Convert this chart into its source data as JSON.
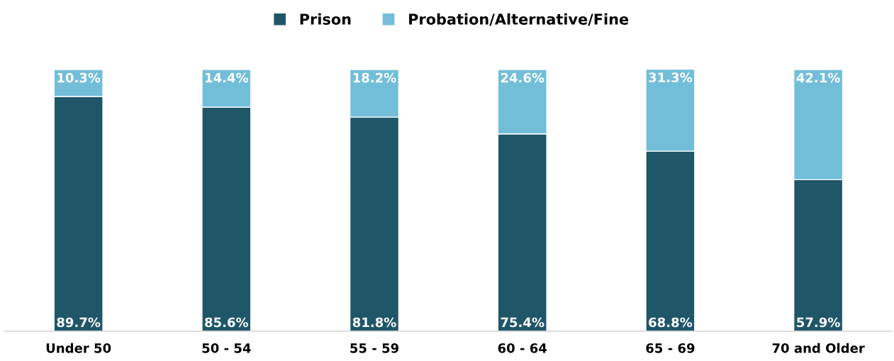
{
  "chart_data": {
    "type": "bar",
    "stacked": true,
    "categories": [
      "Under 50",
      "50 - 54",
      "55 - 59",
      "60 - 64",
      "65 - 69",
      "70 and Older"
    ],
    "ylim": [
      0,
      100
    ],
    "legend": "top",
    "tick_labels": "x",
    "series": [
      {
        "name": "Prison",
        "color": "#1f5668",
        "values": [
          89.7,
          85.6,
          81.8,
          75.4,
          68.8,
          57.9
        ],
        "value_labels": [
          "89.7%",
          "85.6%",
          "81.8%",
          "75.4%",
          "68.8%",
          "57.9%"
        ]
      },
      {
        "name": "Probation/Alternative/Fine",
        "color": "#72bed9",
        "values": [
          10.3,
          14.4,
          18.2,
          24.6,
          31.3,
          42.1
        ],
        "value_labels": [
          "10.3%",
          "14.4%",
          "18.2%",
          "24.6%",
          "31.3%",
          "42.1%"
        ]
      }
    ]
  }
}
